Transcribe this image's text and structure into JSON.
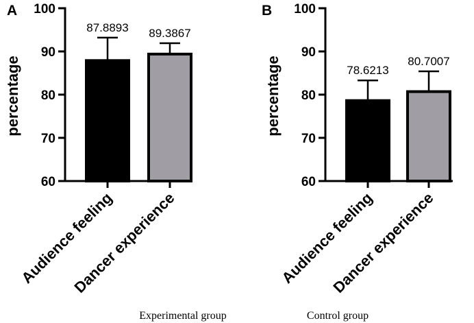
{
  "chart_data": [
    {
      "type": "bar",
      "panel": "A",
      "categories": [
        "Audience feeling",
        "Dancer experience"
      ],
      "values": [
        87.8893,
        89.3867
      ],
      "value_labels": [
        "87.8893",
        "89.3867"
      ],
      "error_upper": [
        93.2,
        91.9
      ],
      "colors": [
        "#000000",
        "#a09ea4"
      ],
      "ylabel": "percentage",
      "ylim": [
        60,
        100
      ],
      "yticks": [
        60,
        70,
        80,
        90,
        100
      ],
      "caption": "Experimental group"
    },
    {
      "type": "bar",
      "panel": "B",
      "categories": [
        "Audience feeling",
        "Dancer experience"
      ],
      "values": [
        78.6213,
        80.7007
      ],
      "value_labels": [
        "78.6213",
        "80.7007"
      ],
      "error_upper": [
        83.3,
        85.4
      ],
      "colors": [
        "#000000",
        "#a09ea4"
      ],
      "ylabel": "percentage",
      "ylim": [
        60,
        100
      ],
      "yticks": [
        60,
        70,
        80,
        90,
        100
      ],
      "caption": "Control group"
    }
  ]
}
